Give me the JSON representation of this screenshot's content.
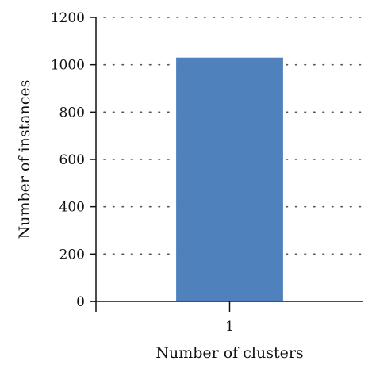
{
  "chart_data": {
    "type": "bar",
    "categories": [
      "1"
    ],
    "values": [
      1030
    ],
    "xlabel": "Number of clusters",
    "ylabel": "Number of instances",
    "ylim": [
      0,
      1200
    ],
    "yticks": [
      0,
      200,
      400,
      600,
      800,
      1000,
      1200
    ],
    "grid": true,
    "grid_style": "dotted",
    "legend": "none",
    "bar_color": "#4f81bd",
    "axis_color": "#111111",
    "grid_color": "#555555"
  }
}
